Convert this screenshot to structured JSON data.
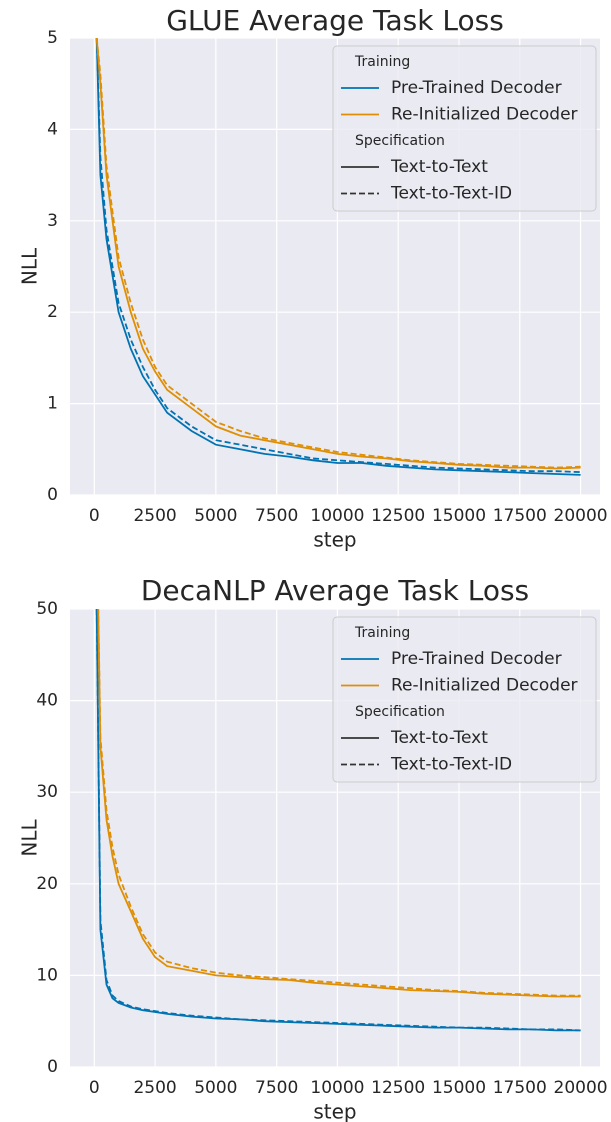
{
  "chart_data": [
    {
      "type": "line",
      "title": "GLUE Average Task Loss",
      "x_label": "step",
      "y_label": "NLL",
      "xlim": [
        -1000,
        20800
      ],
      "ylim": [
        0,
        5
      ],
      "xticks": [
        0,
        2500,
        5000,
        7500,
        10000,
        12500,
        15000,
        17500,
        20000
      ],
      "yticks": [
        0,
        1,
        2,
        3,
        4,
        5
      ],
      "grid": true,
      "legend": {
        "corner": "upper right",
        "groups": [
          {
            "title": "Training",
            "entries": [
              {
                "label": "Pre-Trained Decoder",
                "color": "#0173b2"
              },
              {
                "label": "Re-Initialized Decoder",
                "color": "#de8f05"
              }
            ]
          },
          {
            "title": "Specification",
            "entries": [
              {
                "label": "Text-to-Text",
                "linestyle": "solid"
              },
              {
                "label": "Text-to-Text-ID",
                "linestyle": "dashed"
              }
            ]
          }
        ]
      },
      "x": [
        100,
        250,
        500,
        750,
        1000,
        1500,
        2000,
        2500,
        3000,
        4000,
        5000,
        6000,
        7000,
        8000,
        9000,
        10000,
        11000,
        12000,
        13000,
        14000,
        15000,
        16000,
        17000,
        18000,
        19000,
        20000
      ],
      "series": [
        {
          "color": "#0173b2",
          "linestyle": "solid",
          "values": [
            5,
            3.5,
            2.8,
            2.4,
            2.0,
            1.6,
            1.3,
            1.1,
            0.9,
            0.7,
            0.55,
            0.5,
            0.45,
            0.42,
            0.38,
            0.35,
            0.35,
            0.32,
            0.3,
            0.28,
            0.27,
            0.26,
            0.25,
            0.24,
            0.23,
            0.22
          ]
        },
        {
          "color": "#0173b2",
          "linestyle": "dashed",
          "values": [
            5,
            3.7,
            2.9,
            2.5,
            2.1,
            1.7,
            1.4,
            1.15,
            0.95,
            0.75,
            0.6,
            0.55,
            0.5,
            0.45,
            0.4,
            0.38,
            0.36,
            0.34,
            0.32,
            0.3,
            0.29,
            0.28,
            0.27,
            0.26,
            0.26,
            0.25
          ]
        },
        {
          "color": "#de8f05",
          "linestyle": "solid",
          "values": [
            5,
            4.5,
            3.5,
            3.0,
            2.5,
            2.0,
            1.6,
            1.35,
            1.15,
            0.95,
            0.75,
            0.65,
            0.6,
            0.55,
            0.5,
            0.45,
            0.42,
            0.4,
            0.37,
            0.35,
            0.33,
            0.32,
            0.3,
            0.3,
            0.29,
            0.3
          ]
        },
        {
          "color": "#de8f05",
          "linestyle": "dashed",
          "values": [
            5,
            4.6,
            3.6,
            3.1,
            2.6,
            2.1,
            1.7,
            1.4,
            1.2,
            1.0,
            0.8,
            0.7,
            0.62,
            0.57,
            0.52,
            0.47,
            0.44,
            0.41,
            0.38,
            0.36,
            0.34,
            0.33,
            0.32,
            0.31,
            0.3,
            0.31
          ]
        }
      ]
    },
    {
      "type": "line",
      "title": "DecaNLP Average Task Loss",
      "x_label": "step",
      "y_label": "NLL",
      "xlim": [
        -1000,
        20800
      ],
      "ylim": [
        0,
        50
      ],
      "xticks": [
        0,
        2500,
        5000,
        7500,
        10000,
        12500,
        15000,
        17500,
        20000
      ],
      "yticks": [
        0,
        10,
        20,
        30,
        40,
        50
      ],
      "grid": true,
      "legend": {
        "corner": "upper right",
        "groups": [
          {
            "title": "Training",
            "entries": [
              {
                "label": "Pre-Trained Decoder",
                "color": "#0173b2"
              },
              {
                "label": "Re-Initialized Decoder",
                "color": "#de8f05"
              }
            ]
          },
          {
            "title": "Specification",
            "entries": [
              {
                "label": "Text-to-Text",
                "linestyle": "solid"
              },
              {
                "label": "Text-to-Text-ID",
                "linestyle": "dashed"
              }
            ]
          }
        ]
      },
      "x": [
        100,
        250,
        500,
        750,
        1000,
        1500,
        2000,
        2500,
        3000,
        4000,
        5000,
        6000,
        7000,
        8000,
        9000,
        10000,
        11000,
        12000,
        13000,
        14000,
        15000,
        16000,
        17000,
        18000,
        19000,
        20000
      ],
      "series": [
        {
          "color": "#0173b2",
          "linestyle": "solid",
          "values": [
            50,
            15,
            9,
            7.5,
            7,
            6.5,
            6.2,
            6,
            5.8,
            5.5,
            5.3,
            5.2,
            5,
            4.9,
            4.8,
            4.7,
            4.6,
            4.5,
            4.4,
            4.3,
            4.3,
            4.2,
            4.1,
            4.1,
            4,
            4
          ]
        },
        {
          "color": "#0173b2",
          "linestyle": "dashed",
          "values": [
            50,
            16,
            9.5,
            7.8,
            7.2,
            6.6,
            6.3,
            6.1,
            5.9,
            5.6,
            5.4,
            5.2,
            5.1,
            5,
            4.9,
            4.8,
            4.7,
            4.6,
            4.5,
            4.4,
            4.3,
            4.3,
            4.2,
            4.1,
            4.1,
            4
          ]
        },
        {
          "color": "#de8f05",
          "linestyle": "solid",
          "values": [
            60,
            35,
            27,
            23,
            20,
            17,
            14,
            12,
            11,
            10.5,
            10,
            9.8,
            9.6,
            9.5,
            9.2,
            9,
            8.8,
            8.6,
            8.4,
            8.3,
            8.2,
            8,
            7.9,
            7.8,
            7.7,
            7.7
          ]
        },
        {
          "color": "#de8f05",
          "linestyle": "dashed",
          "values": [
            60,
            36,
            28,
            24,
            21,
            17.5,
            14.5,
            12.5,
            11.5,
            10.8,
            10.3,
            10,
            9.8,
            9.6,
            9.4,
            9.2,
            9,
            8.8,
            8.6,
            8.4,
            8.3,
            8.1,
            8,
            7.9,
            7.8,
            7.8
          ]
        }
      ]
    }
  ]
}
